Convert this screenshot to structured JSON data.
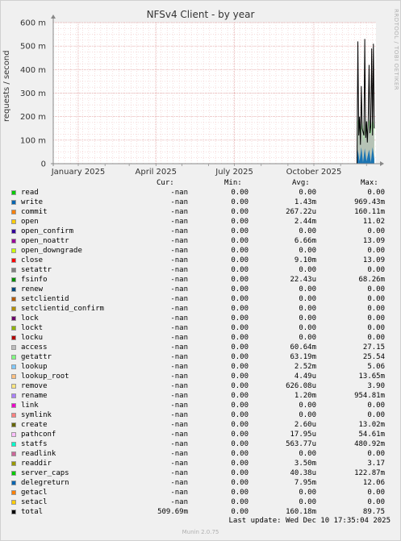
{
  "chart_data": {
    "type": "area",
    "title": "NFSv4 Client - by year",
    "side_label": "RRDTOOL / TOBI OETIKER",
    "ylabel": "requests / second",
    "xlabel": "",
    "y_ticks": [
      "0",
      "100 m",
      "200 m",
      "300 m",
      "400 m",
      "500 m",
      "600 m"
    ],
    "y_tick_values": [
      0,
      100,
      200,
      300,
      400,
      500,
      600
    ],
    "ylim": [
      0,
      600
    ],
    "y_unit": "milli",
    "x_ticks": [
      "January 2025",
      "April 2025",
      "July 2025",
      "October 2025"
    ],
    "x_range": [
      "2024-12-03",
      "2025-12-12"
    ],
    "x_tick_dates": [
      "2025-01-01",
      "2025-04-01",
      "2025-07-01",
      "2025-10-01"
    ],
    "grid": true,
    "colors": {
      "background": "#f0f0f0",
      "plot_bg": "#ffffff",
      "major_grid": "#e0a0a0",
      "minor_grid": "#f0c8c8",
      "axis": "#888888",
      "total_line": "#000000"
    },
    "series_drawn": [
      {
        "name": "getattr",
        "color": "#88ee88",
        "values": [
          [
            "2025-11-20",
            0
          ],
          [
            "2025-11-21",
            180
          ],
          [
            "2025-11-22",
            200
          ],
          [
            "2025-11-24",
            120
          ],
          [
            "2025-11-26",
            190
          ],
          [
            "2025-11-28",
            110
          ],
          [
            "2025-11-30",
            200
          ],
          [
            "2025-12-02",
            130
          ],
          [
            "2025-12-04",
            190
          ],
          [
            "2025-12-06",
            140
          ],
          [
            "2025-12-08",
            200
          ],
          [
            "2025-12-10",
            150
          ]
        ]
      },
      {
        "name": "access",
        "color": "#bbbbbb",
        "values": [
          [
            "2025-11-20",
            0
          ],
          [
            "2025-11-21",
            160
          ],
          [
            "2025-11-22",
            180
          ],
          [
            "2025-11-24",
            100
          ],
          [
            "2025-11-26",
            170
          ],
          [
            "2025-11-28",
            90
          ],
          [
            "2025-11-30",
            180
          ],
          [
            "2025-12-02",
            110
          ],
          [
            "2025-12-04",
            170
          ],
          [
            "2025-12-06",
            120
          ],
          [
            "2025-12-08",
            180
          ],
          [
            "2025-12-10",
            130
          ]
        ]
      },
      {
        "name": "write",
        "color": "#0066b3",
        "values": [
          [
            "2025-11-20",
            0
          ],
          [
            "2025-11-21",
            60
          ],
          [
            "2025-11-23",
            10
          ],
          [
            "2025-11-25",
            70
          ],
          [
            "2025-11-27",
            5
          ],
          [
            "2025-11-29",
            65
          ],
          [
            "2025-12-01",
            10
          ],
          [
            "2025-12-04",
            60
          ],
          [
            "2025-12-06",
            5
          ],
          [
            "2025-12-08",
            70
          ],
          [
            "2025-12-10",
            20
          ]
        ]
      }
    ],
    "total_points": [
      [
        "2025-11-18",
        0
      ],
      [
        "2025-11-20",
        0
      ],
      [
        "2025-11-21",
        520
      ],
      [
        "2025-11-22",
        120
      ],
      [
        "2025-11-23",
        200
      ],
      [
        "2025-11-24",
        80
      ],
      [
        "2025-11-25",
        330
      ],
      [
        "2025-11-26",
        150
      ],
      [
        "2025-11-28",
        120
      ],
      [
        "2025-11-29",
        530
      ],
      [
        "2025-11-30",
        110
      ],
      [
        "2025-12-01",
        180
      ],
      [
        "2025-12-02",
        90
      ],
      [
        "2025-12-03",
        190
      ],
      [
        "2025-12-04",
        420
      ],
      [
        "2025-12-05",
        130
      ],
      [
        "2025-12-06",
        160
      ],
      [
        "2025-12-07",
        490
      ],
      [
        "2025-12-08",
        120
      ],
      [
        "2025-12-09",
        510
      ],
      [
        "2025-12-10",
        150
      ]
    ],
    "legend_header": {
      "cur": "Cur:",
      "min": "Min:",
      "avg": "Avg:",
      "max": "Max:"
    },
    "legend": [
      {
        "name": "read",
        "color": "#00cc00",
        "cur": "-nan",
        "min": "0.00",
        "avg": "0.00",
        "max": "0.00"
      },
      {
        "name": "write",
        "color": "#0066b3",
        "cur": "-nan",
        "min": "0.00",
        "avg": "1.43m",
        "max": "969.43m"
      },
      {
        "name": "commit",
        "color": "#ff8000",
        "cur": "-nan",
        "min": "0.00",
        "avg": "267.22u",
        "max": "160.11m"
      },
      {
        "name": "open",
        "color": "#ffcc00",
        "cur": "-nan",
        "min": "0.00",
        "avg": "2.44m",
        "max": "11.02"
      },
      {
        "name": "open_confirm",
        "color": "#330099",
        "cur": "-nan",
        "min": "0.00",
        "avg": "0.00",
        "max": "0.00"
      },
      {
        "name": "open_noattr",
        "color": "#990099",
        "cur": "-nan",
        "min": "0.00",
        "avg": "6.66m",
        "max": "13.09"
      },
      {
        "name": "open_downgrade",
        "color": "#ccff00",
        "cur": "-nan",
        "min": "0.00",
        "avg": "0.00",
        "max": "0.00"
      },
      {
        "name": "close",
        "color": "#ff0000",
        "cur": "-nan",
        "min": "0.00",
        "avg": "9.10m",
        "max": "13.09"
      },
      {
        "name": "setattr",
        "color": "#808080",
        "cur": "-nan",
        "min": "0.00",
        "avg": "0.00",
        "max": "0.00"
      },
      {
        "name": "fsinfo",
        "color": "#008f00",
        "cur": "-nan",
        "min": "0.00",
        "avg": "22.43u",
        "max": "68.26m"
      },
      {
        "name": "renew",
        "color": "#00487d",
        "cur": "-nan",
        "min": "0.00",
        "avg": "0.00",
        "max": "0.00"
      },
      {
        "name": "setclientid",
        "color": "#b35a00",
        "cur": "-nan",
        "min": "0.00",
        "avg": "0.00",
        "max": "0.00"
      },
      {
        "name": "setclientid_confirm",
        "color": "#b38f00",
        "cur": "-nan",
        "min": "0.00",
        "avg": "0.00",
        "max": "0.00"
      },
      {
        "name": "lock",
        "color": "#6b006b",
        "cur": "-nan",
        "min": "0.00",
        "avg": "0.00",
        "max": "0.00"
      },
      {
        "name": "lockt",
        "color": "#8fb300",
        "cur": "-nan",
        "min": "0.00",
        "avg": "0.00",
        "max": "0.00"
      },
      {
        "name": "locku",
        "color": "#b30000",
        "cur": "-nan",
        "min": "0.00",
        "avg": "0.00",
        "max": "0.00"
      },
      {
        "name": "access",
        "color": "#bebebe",
        "cur": "-nan",
        "min": "0.00",
        "avg": "60.64m",
        "max": "27.15"
      },
      {
        "name": "getattr",
        "color": "#80ff80",
        "cur": "-nan",
        "min": "0.00",
        "avg": "63.19m",
        "max": "25.54"
      },
      {
        "name": "lookup",
        "color": "#80c9ff",
        "cur": "-nan",
        "min": "0.00",
        "avg": "2.52m",
        "max": "5.06"
      },
      {
        "name": "lookup_root",
        "color": "#ffc080",
        "cur": "-nan",
        "min": "0.00",
        "avg": "4.49u",
        "max": "13.65m"
      },
      {
        "name": "remove",
        "color": "#ffe680",
        "cur": "-nan",
        "min": "0.00",
        "avg": "626.08u",
        "max": "3.90"
      },
      {
        "name": "rename",
        "color": "#aa80ff",
        "cur": "-nan",
        "min": "0.00",
        "avg": "1.20m",
        "max": "954.81m"
      },
      {
        "name": "link",
        "color": "#ee00cc",
        "cur": "-nan",
        "min": "0.00",
        "avg": "0.00",
        "max": "0.00"
      },
      {
        "name": "symlink",
        "color": "#ff8080",
        "cur": "-nan",
        "min": "0.00",
        "avg": "0.00",
        "max": "0.00"
      },
      {
        "name": "create",
        "color": "#666600",
        "cur": "-nan",
        "min": "0.00",
        "avg": "2.60u",
        "max": "13.02m"
      },
      {
        "name": "pathconf",
        "color": "#ffbfff",
        "cur": "-nan",
        "min": "0.00",
        "avg": "17.95u",
        "max": "54.61m"
      },
      {
        "name": "statfs",
        "color": "#00ffcc",
        "cur": "-nan",
        "min": "0.00",
        "avg": "563.77u",
        "max": "480.92m"
      },
      {
        "name": "readlink",
        "color": "#cc6699",
        "cur": "-nan",
        "min": "0.00",
        "avg": "0.00",
        "max": "0.00"
      },
      {
        "name": "readdir",
        "color": "#999900",
        "cur": "-nan",
        "min": "0.00",
        "avg": "3.50m",
        "max": "3.17"
      },
      {
        "name": "server_caps",
        "color": "#00cc00",
        "cur": "-nan",
        "min": "0.00",
        "avg": "40.38u",
        "max": "122.87m"
      },
      {
        "name": "delegreturn",
        "color": "#0066b3",
        "cur": "-nan",
        "min": "0.00",
        "avg": "7.95m",
        "max": "12.06"
      },
      {
        "name": "getacl",
        "color": "#ff8000",
        "cur": "-nan",
        "min": "0.00",
        "avg": "0.00",
        "max": "0.00"
      },
      {
        "name": "setacl",
        "color": "#ffcc00",
        "cur": "-nan",
        "min": "0.00",
        "avg": "0.00",
        "max": "0.00"
      },
      {
        "name": "total",
        "color": "#000000",
        "cur": "509.69m",
        "min": "0.00",
        "avg": "160.18m",
        "max": "89.75"
      }
    ]
  },
  "footer": {
    "last_update": "Last update: Wed Dec 10 17:35:04 2025",
    "version": "Munin 2.0.75"
  }
}
